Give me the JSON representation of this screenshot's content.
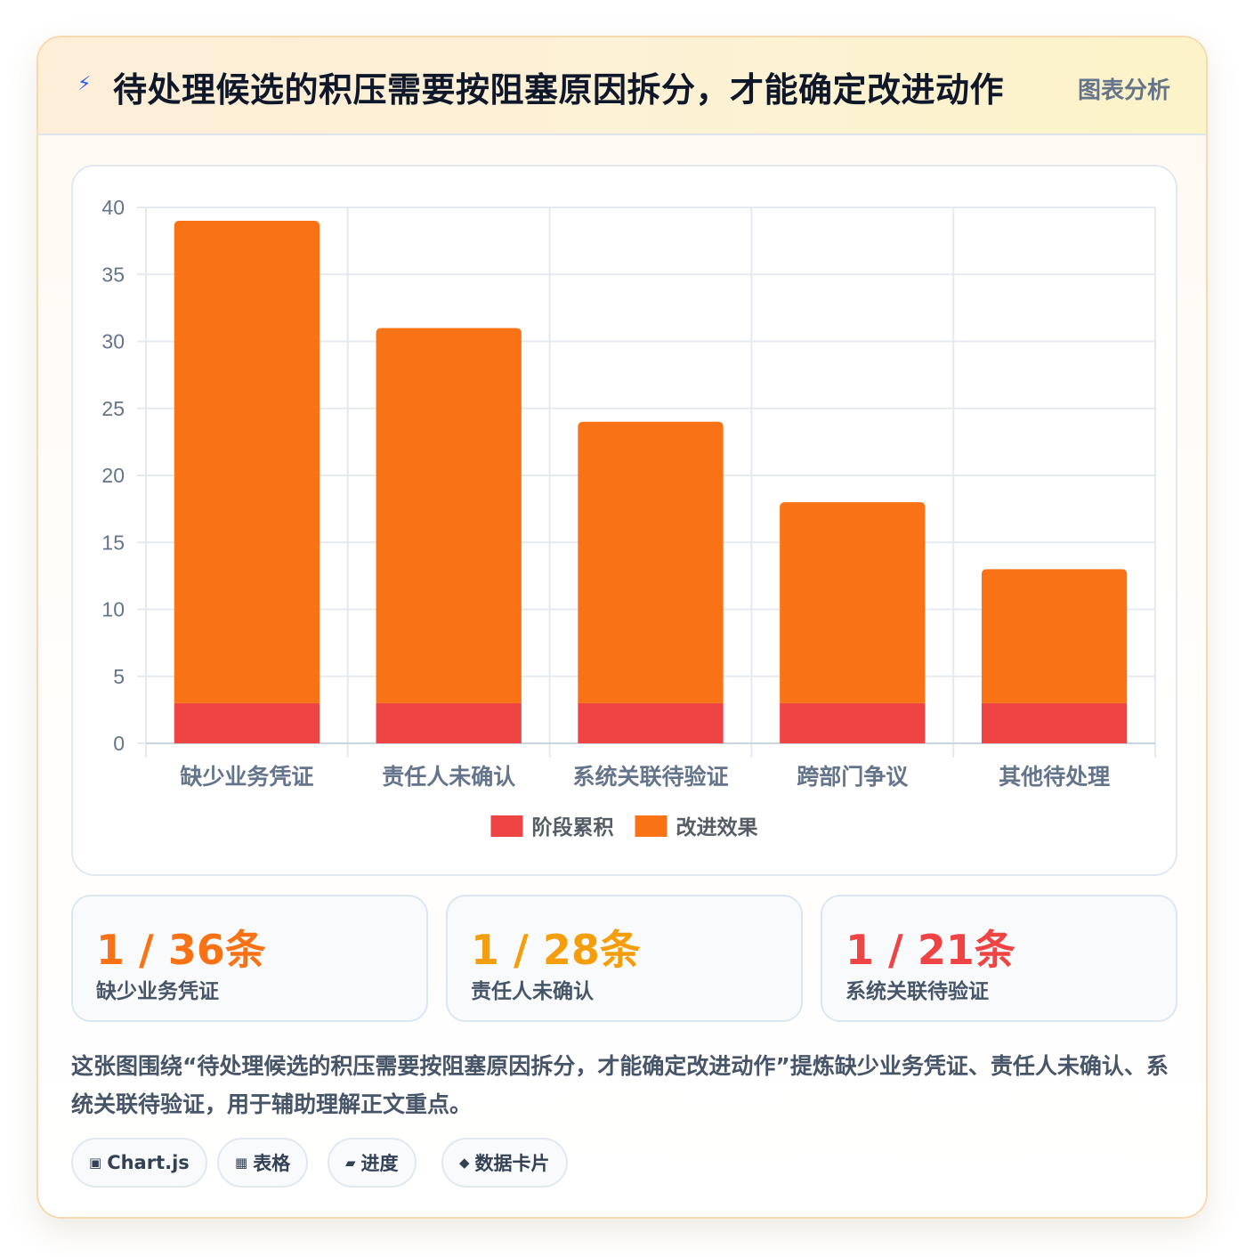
{
  "header": {
    "icon": "lightning-icon",
    "title": "待处理候选的积压需要按阻塞原因拆分，才能确定改进动作",
    "tag": "图表分析"
  },
  "chart_data": {
    "type": "bar",
    "stacked": true,
    "categories": [
      "缺少业务凭证",
      "责任人未确认",
      "系统关联待验证",
      "跨部门争议",
      "其他待处理"
    ],
    "series": [
      {
        "name": "阶段累积",
        "color": "#ef4444",
        "values": [
          3,
          3,
          3,
          3,
          3
        ]
      },
      {
        "name": "改进效果",
        "color": "#f97316",
        "values": [
          36,
          28,
          21,
          15,
          10
        ]
      }
    ],
    "ylim": [
      0,
      40
    ],
    "yticks": [
      0,
      5,
      10,
      15,
      20,
      25,
      30,
      35,
      40
    ],
    "grid": true,
    "legend": "bottom"
  },
  "stats": [
    {
      "value": "1 / 36条",
      "label": "缺少业务凭证",
      "color": "#f97316"
    },
    {
      "value": "1 / 28条",
      "label": "责任人未确认",
      "color": "#f59e0b"
    },
    {
      "value": "1 / 21条",
      "label": "系统关联待验证",
      "color": "#ef4444"
    }
  ],
  "summary": "这张图围绕“待处理候选的积压需要按阻塞原因拆分，才能确定改进动作”提炼缺少业务凭证、责任人未确认、系统关联待验证，用于辅助理解正文重点。",
  "chips": [
    {
      "icon": "▣",
      "icon_name": "chart-icon",
      "label": "Chart.js"
    },
    {
      "icon": "▦",
      "icon_name": "table-icon",
      "label": "表格"
    },
    {
      "icon": "▰",
      "icon_name": "progress-icon",
      "label": "进度"
    },
    {
      "icon": "◆",
      "icon_name": "data-card-icon",
      "label": "数据卡片"
    }
  ]
}
